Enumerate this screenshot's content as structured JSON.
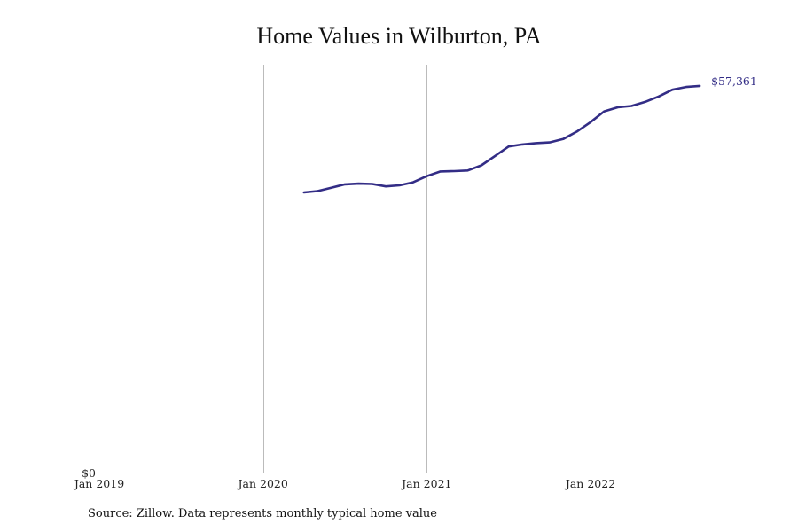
{
  "chart_data": {
    "type": "line",
    "title": "Home Values in Wilburton, PA",
    "xlabel": "",
    "ylabel": "",
    "x_ticks": [
      {
        "label": "Jan 2019",
        "date": "2019-01"
      },
      {
        "label": "Jan 2020",
        "date": "2020-01"
      },
      {
        "label": "Jan 2021",
        "date": "2021-01"
      },
      {
        "label": "Jan 2022",
        "date": "2022-01"
      }
    ],
    "y_ticks": [
      {
        "label": "$0",
        "value": 0
      }
    ],
    "xlim": [
      "2019-01",
      "2022-10"
    ],
    "ylim": [
      0,
      60500
    ],
    "grid": {
      "vertical": true,
      "horizontal": false
    },
    "legend": "none",
    "series": [
      {
        "color": "#332d86",
        "end_label": "$57,361",
        "points": [
          {
            "x": "2020-04",
            "y": 41600
          },
          {
            "x": "2020-05",
            "y": 41800
          },
          {
            "x": "2020-06",
            "y": 42300
          },
          {
            "x": "2020-07",
            "y": 42800
          },
          {
            "x": "2020-08",
            "y": 42900
          },
          {
            "x": "2020-09",
            "y": 42850
          },
          {
            "x": "2020-10",
            "y": 42500
          },
          {
            "x": "2020-11",
            "y": 42650
          },
          {
            "x": "2020-12",
            "y": 43100
          },
          {
            "x": "2021-01",
            "y": 44000
          },
          {
            "x": "2021-02",
            "y": 44700
          },
          {
            "x": "2021-03",
            "y": 44750
          },
          {
            "x": "2021-04",
            "y": 44850
          },
          {
            "x": "2021-05",
            "y": 45600
          },
          {
            "x": "2021-06",
            "y": 47000
          },
          {
            "x": "2021-07",
            "y": 48400
          },
          {
            "x": "2021-08",
            "y": 48700
          },
          {
            "x": "2021-09",
            "y": 48900
          },
          {
            "x": "2021-10",
            "y": 49000
          },
          {
            "x": "2021-11",
            "y": 49500
          },
          {
            "x": "2021-12",
            "y": 50600
          },
          {
            "x": "2022-01",
            "y": 52000
          },
          {
            "x": "2022-02",
            "y": 53600
          },
          {
            "x": "2022-03",
            "y": 54200
          },
          {
            "x": "2022-04",
            "y": 54400
          },
          {
            "x": "2022-05",
            "y": 55000
          },
          {
            "x": "2022-06",
            "y": 55800
          },
          {
            "x": "2022-07",
            "y": 56800
          },
          {
            "x": "2022-08",
            "y": 57200
          },
          {
            "x": "2022-09",
            "y": 57361
          }
        ]
      }
    ],
    "grid_color": "#bbbbbb"
  },
  "source_note": "Source: Zillow. Data represents monthly typical home value"
}
